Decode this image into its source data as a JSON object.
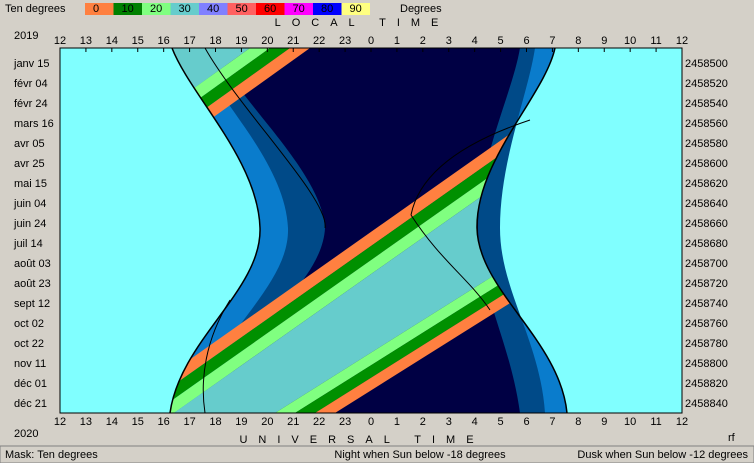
{
  "legend": {
    "label": "Ten degrees",
    "steps": [
      "0",
      "10",
      "20",
      "30",
      "40",
      "50",
      "60",
      "70",
      "80",
      "90"
    ],
    "unit": "Degrees"
  },
  "top_axis": {
    "title": "LOCAL TIME",
    "year": "2019",
    "hours": [
      "12",
      "13",
      "14",
      "15",
      "16",
      "17",
      "18",
      "19",
      "20",
      "21",
      "22",
      "23",
      "0",
      "1",
      "2",
      "3",
      "4",
      "5",
      "6",
      "7",
      "8",
      "9",
      "10",
      "11",
      "12"
    ]
  },
  "bottom_axis": {
    "title": "UNIVERSAL TIME",
    "year": "2020",
    "hours": [
      "12",
      "13",
      "14",
      "15",
      "16",
      "17",
      "18",
      "19",
      "20",
      "21",
      "22",
      "23",
      "0",
      "1",
      "2",
      "3",
      "4",
      "5",
      "6",
      "7",
      "8",
      "9",
      "10",
      "11",
      "12"
    ],
    "corner": "rf"
  },
  "dates": [
    "janv 15",
    "févr 04",
    "févr 24",
    "mars 16",
    "avr 05",
    "avr 25",
    "mai 15",
    "juin 04",
    "juin 24",
    "juil 14",
    "août 03",
    "août 23",
    "sept 12",
    "oct 02",
    "oct 22",
    "nov 11",
    "déc 01",
    "déc 21"
  ],
  "julian_days": [
    2458500,
    2458520,
    2458540,
    2458560,
    2458580,
    2458600,
    2458620,
    2458640,
    2458660,
    2458680,
    2458700,
    2458720,
    2458740,
    2458760,
    2458780,
    2458800,
    2458820,
    2458840
  ],
  "status": {
    "mask": "Mask:  Ten degrees",
    "night": "Night when Sun below -18 degrees",
    "dusk": "Dusk when Sun below -12 degrees"
  }
}
